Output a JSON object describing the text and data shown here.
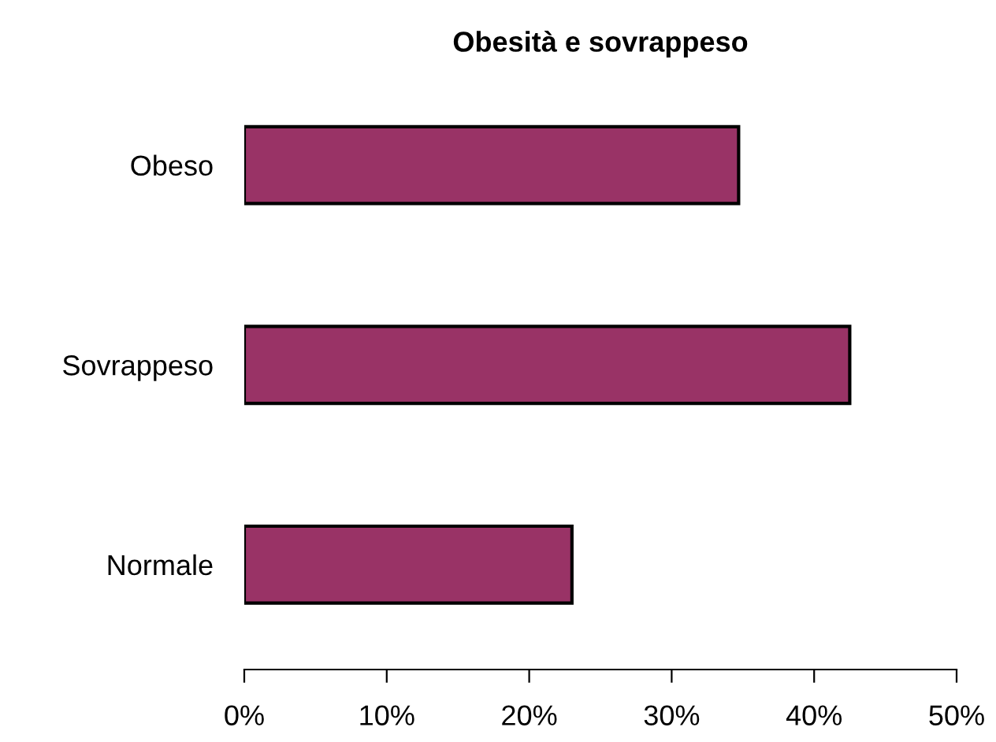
{
  "chart_data": {
    "type": "bar",
    "orientation": "horizontal",
    "title": "Obesità e sovrappeso",
    "categories": [
      "Obeso",
      "Sovrappeso",
      "Normale"
    ],
    "values": [
      34.7,
      42.5,
      23.0
    ],
    "color": "#993366",
    "xlim": [
      0,
      50
    ],
    "xticks": [
      {
        "value": 0,
        "label": "0%"
      },
      {
        "value": 10,
        "label": "10%"
      },
      {
        "value": 20,
        "label": "20%"
      },
      {
        "value": 30,
        "label": "30%"
      },
      {
        "value": 40,
        "label": "40%"
      },
      {
        "value": 50,
        "label": "50%"
      }
    ],
    "grid": false,
    "legend": false
  }
}
